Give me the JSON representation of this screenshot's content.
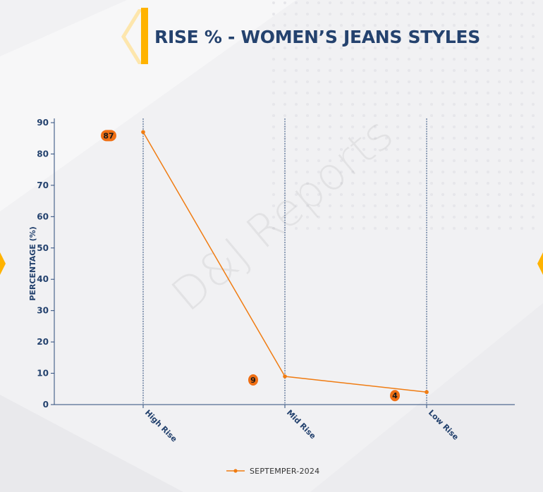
{
  "header": {
    "title": "RISE % - WOMEN’S JEANS STYLES"
  },
  "watermark": "D&J Reports",
  "colors": {
    "accent": "#ffb300",
    "title": "#24426e",
    "series": "#f07c12",
    "label_badge": "#ef6f14",
    "gridline": "#2a4a7a"
  },
  "chart_data": {
    "type": "line",
    "categories": [
      "High Rise",
      "Mid Rise",
      "Low Rise"
    ],
    "series": [
      {
        "name": "SEPTEMPER-2024",
        "values": [
          87,
          9,
          4
        ]
      }
    ],
    "ylabel": "PERCENTAGE (%)",
    "ylim": [
      0,
      90
    ],
    "yticks": [
      0,
      10,
      20,
      30,
      40,
      50,
      60,
      70,
      80,
      90
    ],
    "grid": "vertical dashed at categories",
    "legend": "bottom-center"
  }
}
